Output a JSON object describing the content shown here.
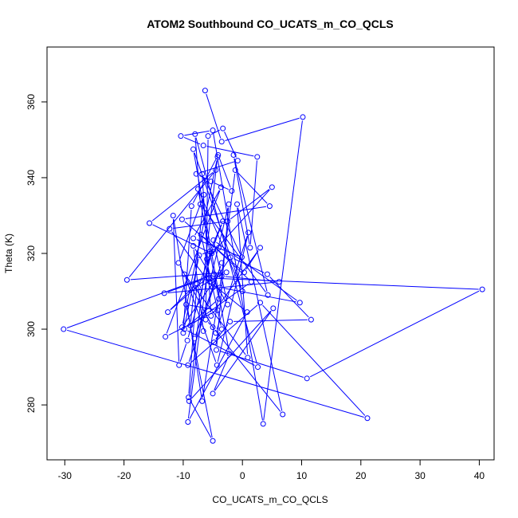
{
  "chart_data": {
    "type": "line",
    "title": "ATOM2 Southbound CO_UCATS_m_CO_QCLS",
    "xlabel": "CO_UCATS_m_CO_QCLS",
    "ylabel": "Theta (K)",
    "xlim": [
      -33,
      42.5
    ],
    "ylim": [
      265.5,
      374.5
    ],
    "xticks": [
      -30,
      -20,
      -10,
      0,
      10,
      20,
      30,
      40
    ],
    "yticks": [
      280,
      300,
      320,
      340,
      360
    ],
    "grid": false,
    "markers": "open-circle",
    "color": "#0000ff",
    "series": [
      {
        "x": [
          -6.3,
          -3.5,
          10.2,
          3.5,
          -5.0,
          -10.4,
          -6.6,
          2.5,
          1.3,
          -1.5,
          4.3,
          -7.1,
          -8.0,
          2.6,
          -9.8,
          -4.0,
          -7.5,
          0.0,
          -8.3,
          -2.2,
          -5.0,
          5.2,
          -9.0,
          -4.2,
          -10.2,
          -2.0,
          4.2,
          11.6,
          -2.1,
          -4.8,
          -3.5,
          -7.0,
          1.5,
          -8.8,
          -6.5,
          -10.8,
          -4.5,
          1.0,
          -4.3,
          -9.8,
          0.9,
          -0.9,
          6.8,
          -5.0,
          -6.2,
          -5.8,
          -3.3,
          -0.8,
          -7.8,
          -5.3,
          -1.8,
          -4.1,
          -8.6,
          -10.0,
          -7.3,
          -4.0,
          -6.0,
          5.0,
          -2.5,
          -12.3,
          -5.0,
          -8.1,
          -3.5,
          -9.2,
          3.0,
          21.1,
          -30.2,
          -4.8,
          -5.6,
          40.5,
          10.9,
          -4.4,
          -2.3,
          -5.5,
          0.8,
          -9.2,
          -5.5,
          -3.3,
          -7.5,
          -2.7,
          -19.5,
          -4.5,
          -15.7,
          -5.2,
          -9.3,
          -10.7,
          -11.7,
          -6.8,
          -3.5,
          6.2,
          -13.2,
          -6.0,
          -12.6,
          -7.7,
          -9.1,
          -5.0,
          -9.5,
          -4.2,
          -13.0,
          -3.6,
          -8.3,
          -0.1,
          -6.8,
          -5.3,
          3.0,
          0.3,
          -10.2,
          4.6,
          -1.2,
          -3.8,
          9.7,
          -4.9,
          -2.5,
          -8.3,
          -6.6
        ],
        "y": [
          363.0,
          349.5,
          356.0,
          275.0,
          352.5,
          351.0,
          348.5,
          345.5,
          321.5,
          346.0,
          309.0,
          333.0,
          351.5,
          290.0,
          300.0,
          308.0,
          337.0,
          310.0,
          347.5,
          293.5,
          283.0,
          305.5,
          281.0,
          345.5,
          300.5,
          319.0,
          314.5,
          302.5,
          302.0,
          296.5,
          300.0,
          325.0,
          312.5,
          301.0,
          335.5,
          317.5,
          299.0,
          325.5,
          290.5,
          314.5,
          292.5,
          333.0,
          277.5,
          300.5,
          302.5,
          351.0,
          353.0,
          344.5,
          341.0,
          339.0,
          336.5,
          346.0,
          332.5,
          299.0,
          319.5,
          321.5,
          318.5,
          337.5,
          328.5,
          326.5,
          311.0,
          297.5,
          317.5,
          290.5,
          307.0,
          276.5,
          300.0,
          314.5,
          313.5,
          310.5,
          287.0,
          294.5,
          333.0,
          312.5,
          304.5,
          275.5,
          320.5,
          328.5,
          311.0,
          315.0,
          313.0,
          342.0,
          328.0,
          320.0,
          297.0,
          290.5,
          330.0,
          281.0,
          314.0,
          312.5,
          309.5,
          313.5,
          304.5,
          312.0,
          282.0,
          270.5,
          306.5,
          305.0,
          298.0,
          337.5,
          324.0,
          319.0,
          341.0,
          303.5,
          321.5,
          315.0,
          329.0,
          332.5,
          342.0,
          311.0,
          307.0,
          323.5,
          306.5,
          322.0,
          299.5
        ]
      }
    ]
  }
}
